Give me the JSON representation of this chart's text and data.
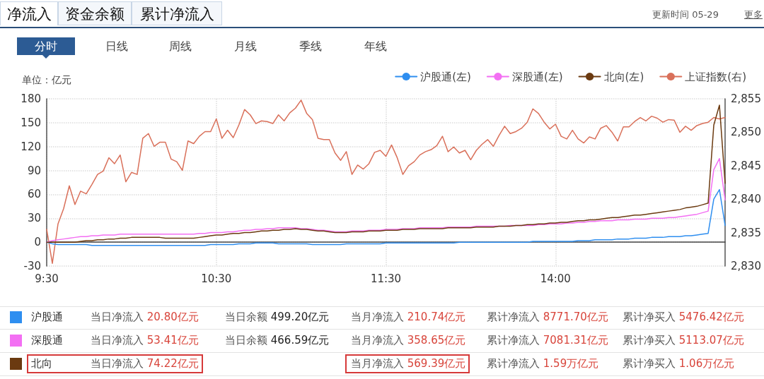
{
  "chart_data": {
    "type": "line",
    "ylabel": "单位：亿元",
    "categories": [
      "9:30",
      null,
      null,
      null,
      null,
      null,
      null,
      null,
      null,
      null,
      null,
      null,
      null,
      null,
      null,
      null,
      null,
      null,
      null,
      null,
      null,
      null,
      null,
      null,
      null,
      null,
      null,
      null,
      null,
      null,
      "10:30",
      null,
      null,
      null,
      null,
      null,
      null,
      null,
      null,
      null,
      null,
      null,
      null,
      null,
      null,
      null,
      null,
      null,
      null,
      null,
      null,
      null,
      null,
      null,
      null,
      null,
      null,
      null,
      null,
      null,
      "11:30",
      null,
      null,
      null,
      null,
      null,
      null,
      null,
      null,
      null,
      null,
      null,
      null,
      null,
      null,
      null,
      null,
      null,
      null,
      null,
      null,
      null,
      null,
      null,
      null,
      null,
      null,
      null,
      null,
      null,
      "14:00",
      null,
      null,
      null,
      null,
      null,
      null,
      null,
      null,
      null,
      null,
      null,
      null,
      null,
      null,
      null,
      null,
      null,
      null,
      null,
      null,
      null,
      null,
      null,
      null,
      null,
      null,
      null,
      null,
      null,
      null
    ],
    "ylim": [
      -30,
      180
    ],
    "yticks": [
      -30,
      0,
      30,
      60,
      90,
      120,
      150,
      180
    ],
    "y2lim": [
      2830,
      2855
    ],
    "y2ticks": [
      {
        "value": 2830,
        "label": "2,830"
      },
      {
        "value": 2835,
        "label": "2,835"
      },
      {
        "value": 2840,
        "label": "2,840"
      },
      {
        "value": 2845,
        "label": "2,845"
      },
      {
        "value": 2850,
        "label": "2,850"
      },
      {
        "value": 2855,
        "label": "2,855"
      }
    ],
    "grid": true,
    "legend": "top right",
    "series": [
      {
        "name": "沪股通(左)",
        "color": "#2e8ef0",
        "values": [
          0,
          -2,
          -3,
          -3,
          -3,
          -3,
          -3,
          -3,
          -4,
          -4,
          -4,
          -4,
          -4,
          -4,
          -4,
          -4,
          -4,
          -4,
          -4,
          -4,
          -4,
          -4,
          -4,
          -4,
          -4,
          -4,
          -4,
          -4,
          -4,
          -3,
          -3,
          -3,
          -3,
          -3,
          -2,
          -2,
          -2,
          -1,
          -1,
          -1,
          -1,
          -2,
          -2,
          -2,
          -2,
          -2,
          -2,
          -3,
          -3,
          -3,
          -3,
          -3,
          -3,
          -2,
          -2,
          -2,
          -2,
          -2,
          -2,
          -2,
          -1,
          -1,
          -1,
          -1,
          -1,
          -1,
          -1,
          -1,
          -1,
          -1,
          -1,
          -1,
          -1,
          0,
          0,
          0,
          0,
          0,
          0,
          0,
          0,
          0,
          0,
          0,
          0,
          0,
          1,
          1,
          1,
          1,
          1,
          1,
          1,
          1,
          2,
          2,
          2,
          3,
          3,
          3,
          3,
          4,
          4,
          4,
          5,
          5,
          5,
          6,
          6,
          6,
          7,
          7,
          7,
          8,
          8,
          9,
          10,
          11,
          54,
          66,
          21
        ]
      },
      {
        "name": "深股通(左)",
        "color": "#f36ff3",
        "values": [
          0,
          2,
          3,
          4,
          5,
          6,
          7,
          7,
          8,
          8,
          9,
          9,
          9,
          10,
          10,
          10,
          10,
          10,
          10,
          10,
          10,
          10,
          10,
          10,
          10,
          10,
          10,
          11,
          11,
          12,
          12,
          12,
          13,
          13,
          14,
          15,
          15,
          16,
          16,
          17,
          17,
          18,
          18,
          18,
          18,
          17,
          17,
          16,
          15,
          15,
          14,
          13,
          13,
          13,
          14,
          14,
          14,
          15,
          15,
          15,
          16,
          16,
          16,
          17,
          17,
          17,
          18,
          18,
          18,
          18,
          18,
          19,
          19,
          19,
          19,
          19,
          20,
          20,
          20,
          20,
          20,
          20,
          21,
          21,
          21,
          21,
          21,
          22,
          22,
          23,
          23,
          23,
          24,
          24,
          25,
          25,
          26,
          26,
          27,
          27,
          27,
          28,
          28,
          28,
          29,
          29,
          29,
          30,
          30,
          30,
          31,
          31,
          32,
          33,
          34,
          35,
          37,
          39,
          91,
          105,
          53
        ]
      },
      {
        "name": "北向(左)",
        "color": "#6b3a10",
        "values": [
          0,
          0,
          0,
          0,
          0,
          0,
          1,
          2,
          2,
          3,
          3,
          4,
          4,
          5,
          5,
          6,
          6,
          6,
          6,
          6,
          6,
          5,
          5,
          5,
          5,
          5,
          5,
          6,
          7,
          8,
          9,
          9,
          10,
          11,
          11,
          12,
          12,
          13,
          14,
          14,
          15,
          15,
          16,
          16,
          17,
          16,
          16,
          15,
          14,
          14,
          13,
          12,
          12,
          12,
          13,
          13,
          13,
          14,
          14,
          14,
          15,
          15,
          15,
          16,
          16,
          16,
          17,
          17,
          17,
          17,
          17,
          18,
          18,
          18,
          18,
          18,
          19,
          19,
          19,
          19,
          20,
          20,
          20,
          21,
          21,
          22,
          22,
          23,
          23,
          24,
          24,
          25,
          25,
          26,
          27,
          27,
          28,
          28,
          29,
          30,
          31,
          31,
          32,
          33,
          34,
          34,
          35,
          36,
          37,
          38,
          39,
          40,
          41,
          43,
          44,
          45,
          47,
          49,
          147,
          172,
          74
        ]
      },
      {
        "name": "上证指数(右)",
        "color": "#d9705a",
        "axis": "y2",
        "values": [
          2835.5,
          2830.4,
          2836.3,
          2838.6,
          2842.0,
          2839.2,
          2841.2,
          2840.8,
          2842.2,
          2843.7,
          2844.2,
          2846.2,
          2845.3,
          2846.6,
          2842.6,
          2844.0,
          2843.7,
          2849.1,
          2849.8,
          2847.9,
          2848.5,
          2848.5,
          2846.0,
          2845.6,
          2844.3,
          2848.7,
          2848.3,
          2849.4,
          2850.1,
          2850.1,
          2852.0,
          2849.1,
          2850.3,
          2849.2,
          2851.1,
          2853.4,
          2852.6,
          2851.3,
          2851.7,
          2851.6,
          2851.3,
          2852.6,
          2851.7,
          2852.9,
          2853.6,
          2854.8,
          2852.8,
          2851.9,
          2849.1,
          2848.9,
          2848.9,
          2846.9,
          2845.8,
          2847.1,
          2843.7,
          2845.1,
          2844.5,
          2845.3,
          2847.0,
          2847.3,
          2846.4,
          2848.1,
          2846.2,
          2843.7,
          2845.0,
          2845.6,
          2846.6,
          2847.1,
          2847.4,
          2848.0,
          2849.4,
          2847.1,
          2847.8,
          2846.9,
          2847.3,
          2845.9,
          2847.3,
          2848.2,
          2848.9,
          2847.9,
          2849.5,
          2850.9,
          2849.8,
          2850.1,
          2850.6,
          2851.5,
          2853.5,
          2852.8,
          2851.5,
          2850.5,
          2851.2,
          2849.4,
          2849.0,
          2850.3,
          2849.0,
          2848.4,
          2849.3,
          2849.0,
          2850.6,
          2851.0,
          2850.0,
          2848.7,
          2850.8,
          2850.8,
          2851.6,
          2852.2,
          2851.7,
          2852.4,
          2852.1,
          2851.5,
          2851.9,
          2851.8,
          2850.0,
          2850.9,
          2850.3,
          2851.0,
          2851.3,
          2851.5,
          2852.2,
          2852.0,
          2852.2
        ]
      }
    ],
    "annotations": [
      "净流入",
      "资金余额",
      "累计净流入",
      "分时",
      "日线",
      "周线",
      "月线",
      "季线",
      "年线",
      "更新时间 05-29",
      "更多",
      "沪股通",
      "当日净流入 20.80亿元",
      "当日余额 499.20亿元",
      "当月净流入 210.74亿元",
      "累计净流入 8771.70亿元",
      "累计净买入 5476.42亿元",
      "深股通",
      "当日净流入 53.41亿元",
      "当日余额 466.59亿元",
      "当月净流入 358.65亿元",
      "累计净流入 7081.31亿元",
      "累计净买入 5113.07亿元",
      "北向",
      "当日净流入 74.22亿元",
      "当月净流入 569.39亿元",
      "累计净流入 1.59万亿元",
      "累计净买入 1.06万亿元"
    ]
  }
}
